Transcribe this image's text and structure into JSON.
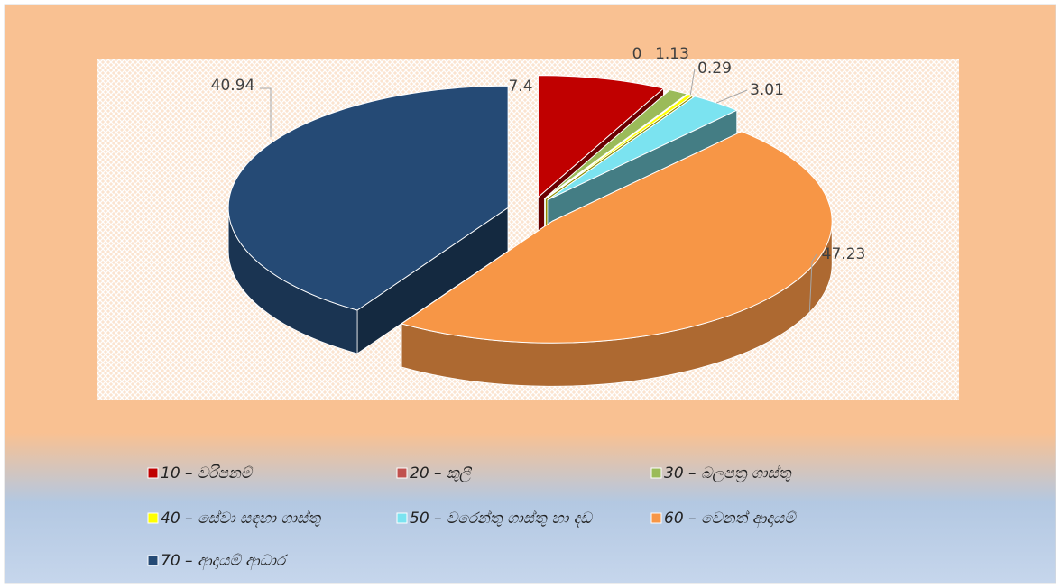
{
  "chart_data": {
    "type": "pie",
    "categories": [
      "10 – වරිපනම්",
      "20 – කුලී",
      "30 – බලපත්‍ර ගාස්තු",
      "40 – සේවා සඳහා ගාස්තු",
      "50 – වරෙන්තු ගාස්තු හා දඩ",
      "60 – වෙනත් ආදායම්",
      "70 – ආදායම් ආධාර"
    ],
    "values": [
      7.4,
      0,
      1.13,
      0.29,
      3.01,
      47.23,
      40.94
    ],
    "colors": [
      "#c00000",
      "#c0504d",
      "#9bbb59",
      "#ffff00",
      "#7be3f0",
      "#f79646",
      "#254a75"
    ],
    "legend": "bottom"
  }
}
